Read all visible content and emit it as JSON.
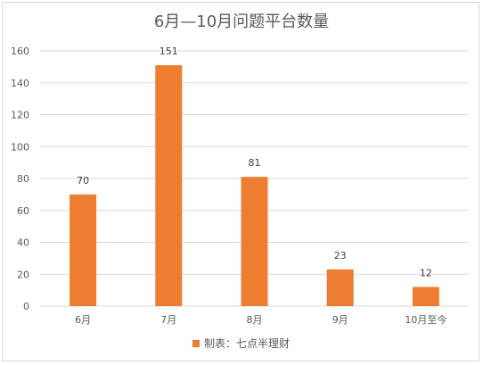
{
  "chart_data": {
    "type": "bar",
    "title": "6月—10月问题平台数量",
    "categories": [
      "6月",
      "7月",
      "8月",
      "9月",
      "10月至今"
    ],
    "series": [
      {
        "name": "制表：七点半理财",
        "values": [
          70,
          151,
          81,
          23,
          12
        ],
        "color": "#ed7d31"
      }
    ],
    "data_labels": [
      "70",
      "151",
      "81",
      "23",
      "12"
    ],
    "y_ticks": [
      "0",
      "20",
      "40",
      "60",
      "80",
      "100",
      "120",
      "140",
      "160"
    ],
    "ylim": [
      0,
      160
    ],
    "grid": true,
    "legend": "bottom",
    "gridline_color": "#d9d9d9"
  }
}
